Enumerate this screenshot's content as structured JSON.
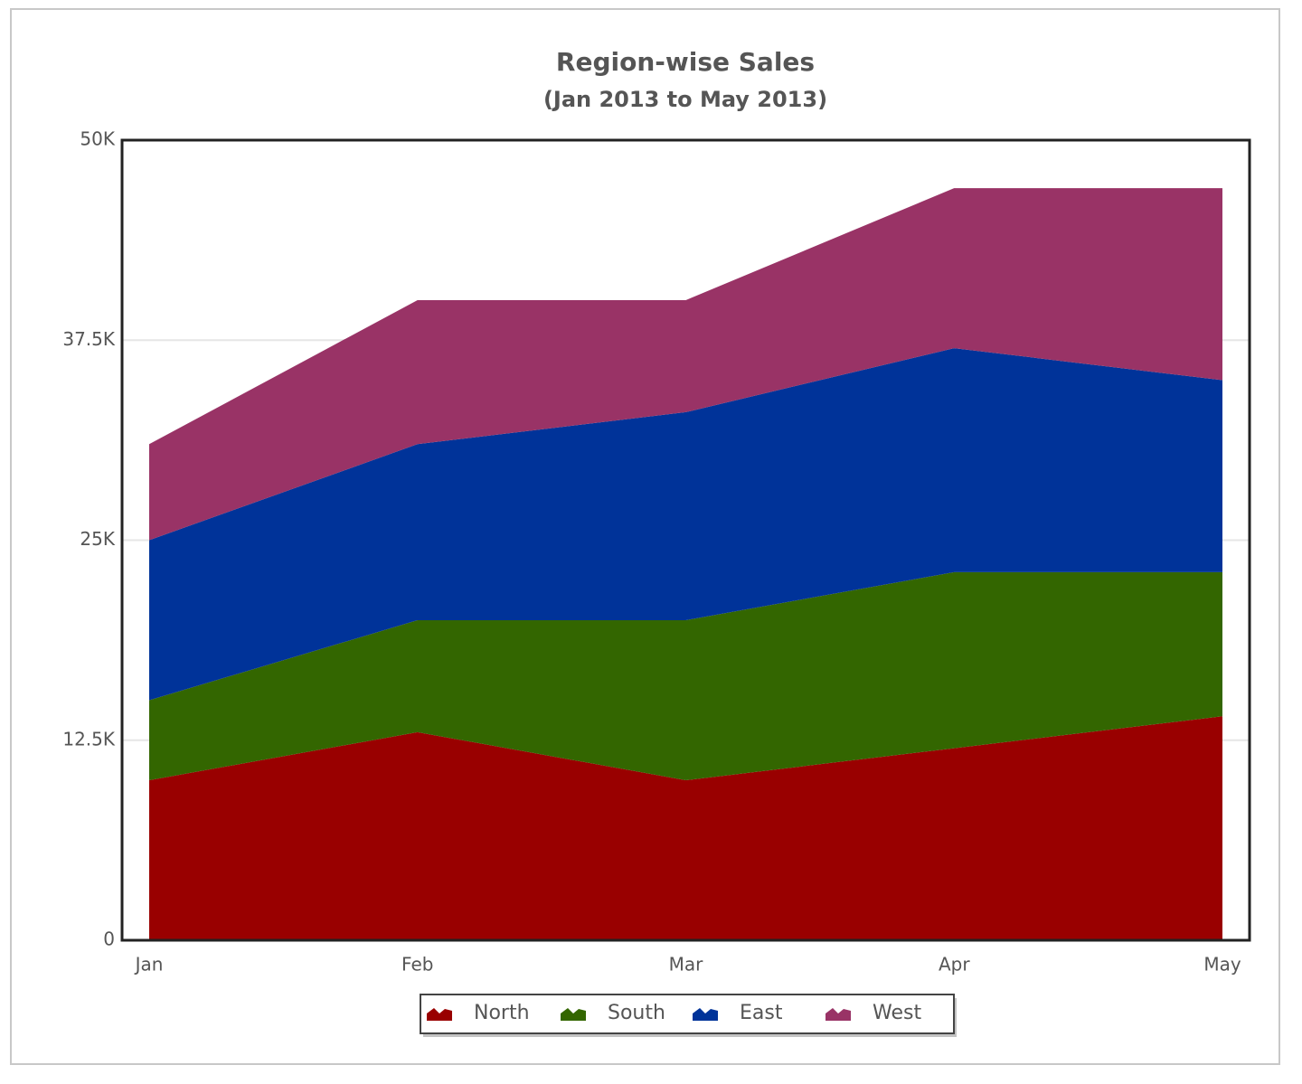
{
  "chart_data": {
    "type": "area",
    "stacked": true,
    "title": "Region-wise Sales",
    "subtitle": "(Jan 2013 to May 2013)",
    "categories": [
      "Jan",
      "Feb",
      "Mar",
      "Apr",
      "May"
    ],
    "series": [
      {
        "name": "North",
        "color": "#990000",
        "values": [
          10000,
          13000,
          10000,
          12000,
          14000
        ]
      },
      {
        "name": "South",
        "color": "#336600",
        "values": [
          5000,
          7000,
          10000,
          11000,
          9000
        ]
      },
      {
        "name": "East",
        "color": "#003399",
        "values": [
          10000,
          11000,
          13000,
          14000,
          12000
        ]
      },
      {
        "name": "West",
        "color": "#993366",
        "values": [
          6000,
          9000,
          7000,
          10000,
          12000
        ]
      }
    ],
    "ylim": [
      0,
      50000
    ],
    "yticks": [
      0,
      {
        "value": 12500,
        "label": "12.5K"
      },
      {
        "value": 25000,
        "label": "25K"
      },
      {
        "value": 37500,
        "label": "37.5K"
      },
      {
        "value": 50000,
        "label": "50K"
      }
    ],
    "grid": true,
    "legend": "bottom"
  }
}
